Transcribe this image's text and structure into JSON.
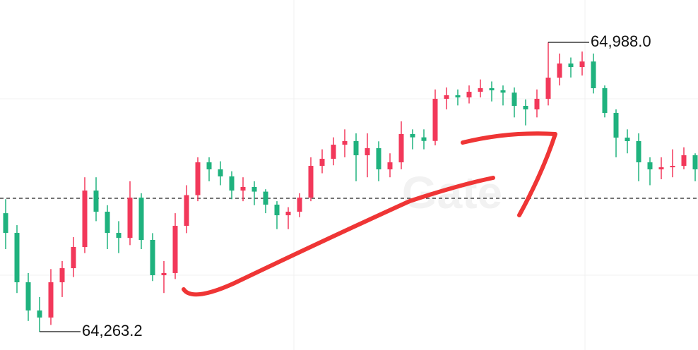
{
  "chart_data": {
    "type": "candlestick",
    "open": [
      64560.0,
      64510.6,
      64386.9,
      64316.2,
      64298.5,
      64386.9,
      64422.2,
      64475.3,
      64616.7,
      64563.7,
      64510.6,
      64498.0,
      64599.0,
      64493.0,
      64404.6,
      64410.0,
      64528.3,
      64605.2,
      64687.4,
      64669.8,
      64652.1,
      64616.7,
      64625.6,
      64614.0,
      64581.4,
      64554.8,
      64563.7,
      64599.0,
      64678.6,
      64696.3,
      64731.6,
      64740.5,
      64705.1,
      64722.8,
      64669.8,
      64687.4,
      64758.2,
      64750.0,
      64741.0,
      64846.6,
      64855.4,
      64850.0,
      64864.2,
      64873.1,
      64867.8,
      64862.0,
      64828.9,
      64820.0,
      64846.6,
      64899.6,
      64935.0,
      64926.1,
      64940.0,
      64873.1,
      64811.2,
      64749.3,
      64740.5,
      64687.4,
      64669.8,
      64675.0,
      64678.6,
      64705.1
    ],
    "high": [
      64595.0,
      64530.0,
      64410.0,
      64350.0,
      64420.0,
      64440.0,
      64500.0,
      64650.0,
      64650.0,
      64580.0,
      64540.0,
      64640.0,
      64610.0,
      64510.0,
      64440.0,
      64560.0,
      64630.0,
      64700.0,
      64700.0,
      64690.0,
      64665.0,
      64650.0,
      64640.0,
      64620.0,
      64590.0,
      64575.0,
      64610.0,
      64700.0,
      64720.0,
      64750.0,
      64770.0,
      64760.0,
      64760.0,
      64740.0,
      64710.0,
      64790.0,
      64770.0,
      64770.0,
      64870.0,
      64875.0,
      64870.0,
      64880.0,
      64895.0,
      64890.0,
      64880.0,
      64875.0,
      64845.0,
      64870.0,
      64988.0,
      64960.0,
      64950.0,
      64965.0,
      64960.0,
      64880.0,
      64820.0,
      64770.0,
      64760.0,
      64700.0,
      64700.0,
      64720.0,
      64725.0,
      64710.0
    ],
    "low": [
      64470.0,
      64360.0,
      64290.0,
      64263.2,
      64280.0,
      64350.0,
      64400.0,
      64460.0,
      64540.0,
      64470.0,
      64460.0,
      64480.0,
      64470.0,
      64390.0,
      64360.0,
      64395.0,
      64510.0,
      64590.0,
      64640.0,
      64630.0,
      64595.0,
      64590.0,
      64580.0,
      64560.0,
      64520.0,
      64520.0,
      64550.0,
      64590.0,
      64660.0,
      64680.0,
      64700.0,
      64640.0,
      64650.0,
      64640.0,
      64650.0,
      64670.0,
      64720.0,
      64720.0,
      64730.0,
      64820.0,
      64830.0,
      64835.0,
      64850.0,
      64840.0,
      64830.0,
      64800.0,
      64780.0,
      64800.0,
      64830.0,
      64880.0,
      64900.0,
      64905.0,
      64860.0,
      64800.0,
      64700.0,
      64710.0,
      64640.0,
      64630.0,
      64645.0,
      64650.0,
      64670.0,
      64640.0
    ],
    "close": [
      64510.6,
      64386.9,
      64316.2,
      64298.5,
      64386.9,
      64422.2,
      64475.3,
      64616.7,
      64563.7,
      64510.6,
      64498.0,
      64599.0,
      64493.0,
      64404.6,
      64410.0,
      64528.3,
      64605.2,
      64687.4,
      64669.8,
      64652.1,
      64616.7,
      64625.6,
      64614.0,
      64581.4,
      64554.8,
      64563.7,
      64599.0,
      64678.6,
      64696.3,
      64731.6,
      64740.5,
      64705.1,
      64722.8,
      64669.8,
      64687.4,
      64758.2,
      64750.0,
      64741.0,
      64846.6,
      64855.4,
      64850.0,
      64864.2,
      64873.1,
      64867.8,
      64862.0,
      64828.9,
      64820.0,
      64846.6,
      64899.6,
      64935.0,
      64926.1,
      64940.0,
      64873.1,
      64811.2,
      64749.3,
      64740.5,
      64687.4,
      64669.8,
      64675.0,
      64678.6,
      64705.1,
      64669.8
    ],
    "up_color": "#f2385a",
    "down_color": "#1fb27e",
    "ylim": [
      64217.2,
      65094.1
    ],
    "annotations": [
      {
        "value": 64988.0,
        "label": "64,988.0"
      },
      {
        "value": 64263.2,
        "label": "64,263.2"
      }
    ],
    "price_line": 64597.3,
    "watermark": "Gate",
    "grid": true
  }
}
